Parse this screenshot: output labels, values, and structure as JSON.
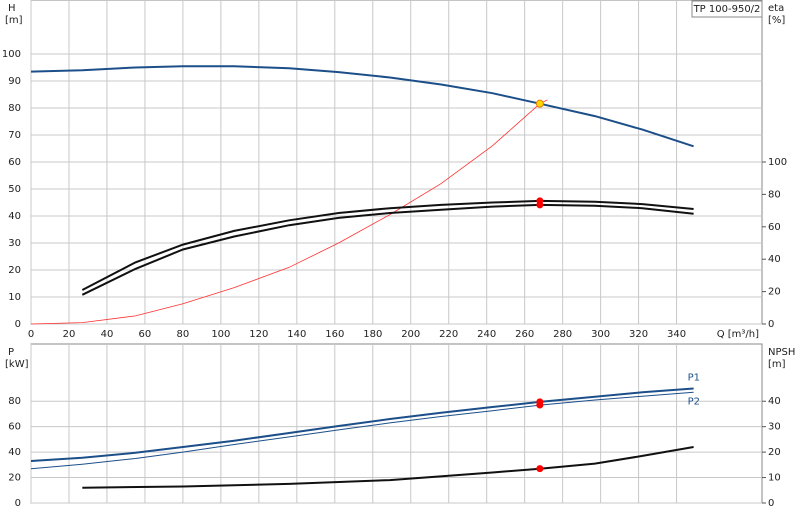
{
  "chart_data": [
    {
      "type": "line",
      "title": "TP 100-950/2",
      "ylabel": "H",
      "yunit": "[m]",
      "y2label": "eta",
      "y2unit": "[%]",
      "xlabel": "Q [m³/h]",
      "xlim": [
        0,
        385
      ],
      "xticks": [
        0,
        20,
        40,
        60,
        80,
        100,
        120,
        140,
        160,
        180,
        200,
        220,
        240,
        260,
        280,
        300,
        320,
        340
      ],
      "ylim": [
        0,
        120
      ],
      "yticks": [
        0,
        10,
        20,
        30,
        40,
        50,
        60,
        70,
        80,
        90,
        100
      ],
      "y2lim": [
        0,
        200
      ],
      "y2ticks": [
        0,
        20,
        40,
        60,
        80,
        100
      ],
      "grid": true,
      "series": [
        {
          "color": "#1c4f8a",
          "width": 2,
          "axis": "y",
          "x": [
            0,
            27,
            55,
            80,
            107,
            136,
            162,
            189,
            216,
            243,
            268,
            297,
            322,
            349
          ],
          "values": [
            93.5,
            94,
            95,
            95.5,
            95.5,
            94.7,
            93.3,
            91.3,
            88.7,
            85.5,
            81.6,
            77,
            72,
            65.8
          ]
        },
        {
          "color": "#ff3030",
          "width": 0.8,
          "axis": "y",
          "x": [
            0,
            27,
            55,
            80,
            107,
            136,
            162,
            189,
            216,
            243,
            268,
            272
          ],
          "values": [
            0,
            0.5,
            3,
            7.5,
            13.5,
            21,
            30,
            40.5,
            52,
            66,
            81.6,
            83
          ]
        },
        {
          "color": "#111111",
          "width": 2,
          "axis": "y2",
          "x": [
            27,
            55,
            80,
            107,
            136,
            162,
            189,
            216,
            243,
            268,
            297,
            322,
            349
          ],
          "values": [
            21,
            38,
            49,
            57.5,
            64,
            68.5,
            71.5,
            73.5,
            75,
            76,
            75.5,
            74,
            71
          ]
        },
        {
          "color": "#111111",
          "width": 2,
          "axis": "y2",
          "x": [
            27,
            55,
            80,
            107,
            136,
            162,
            189,
            216,
            243,
            268,
            297,
            322,
            349
          ],
          "values": [
            18,
            34,
            46,
            54,
            61,
            65.5,
            68.5,
            70.5,
            72.5,
            73.5,
            73,
            71.5,
            68
          ]
        }
      ],
      "operating_points": [
        {
          "x": 268,
          "y": 81.6,
          "axis": "y",
          "color": "#ffd700"
        },
        {
          "x": 268,
          "y": 76,
          "axis": "y2",
          "color": "#ff0000"
        },
        {
          "x": 268,
          "y": 73.5,
          "axis": "y2",
          "color": "#ff0000"
        }
      ]
    },
    {
      "type": "line",
      "ylabel": "P",
      "yunit": "[kW]",
      "y2label": "NPSH",
      "y2unit": "[m]",
      "xlim": [
        0,
        385
      ],
      "xticks": [
        0,
        20,
        40,
        60,
        80,
        100,
        120,
        140,
        160,
        180,
        200,
        220,
        240,
        260,
        280,
        300,
        320,
        340
      ],
      "ylim": [
        0,
        125
      ],
      "yticks": [
        0,
        20,
        40,
        60,
        80
      ],
      "y2lim": [
        0,
        62.5
      ],
      "y2ticks": [
        0,
        10,
        20,
        30,
        40
      ],
      "grid": true,
      "series": [
        {
          "name": "P1",
          "color": "#1c4f8a",
          "width": 2,
          "axis": "y",
          "x": [
            0,
            27,
            55,
            80,
            107,
            136,
            162,
            189,
            216,
            243,
            268,
            297,
            322,
            349
          ],
          "values": [
            33,
            35.5,
            39.5,
            44,
            49,
            55,
            60.5,
            66,
            71,
            75.5,
            79.5,
            83.5,
            87,
            90
          ]
        },
        {
          "name": "P2",
          "color": "#1c4f8a",
          "width": 1,
          "axis": "y",
          "x": [
            0,
            27,
            55,
            80,
            107,
            136,
            162,
            189,
            216,
            243,
            268,
            297,
            322,
            349
          ],
          "values": [
            27,
            30.5,
            35,
            40,
            46,
            52,
            57.5,
            63,
            68,
            72.5,
            77,
            81,
            84,
            87
          ]
        },
        {
          "color": "#111111",
          "width": 2,
          "axis": "y2",
          "x": [
            27,
            80,
            136,
            189,
            243,
            268,
            297,
            322,
            349
          ],
          "values": [
            6,
            6.5,
            7.5,
            9,
            12,
            13.5,
            15.5,
            18.5,
            22
          ]
        }
      ],
      "operating_points": [
        {
          "x": 268,
          "y": 79.5,
          "axis": "y",
          "color": "#ff0000"
        },
        {
          "x": 268,
          "y": 77,
          "axis": "y",
          "color": "#ff0000"
        },
        {
          "x": 268,
          "y": 13.5,
          "axis": "y2",
          "color": "#ff0000"
        }
      ]
    }
  ]
}
